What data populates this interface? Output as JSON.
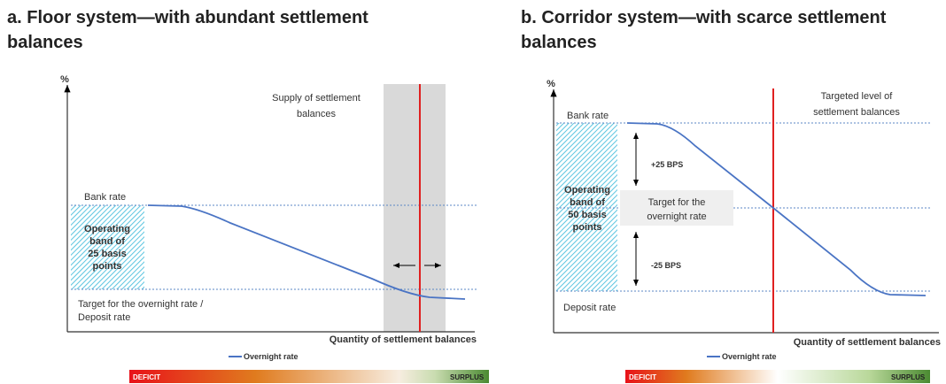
{
  "panels": [
    {
      "title": "a. Floor system—with abundant settlement balances",
      "y_axis_label": "%",
      "supply_label": [
        "Supply of settlement",
        "balances"
      ],
      "bank_rate_label": "Bank rate",
      "band_label": [
        "Operating",
        "band of",
        "25 basis",
        "points"
      ],
      "target_label": [
        "Target for the overnight rate /",
        "Deposit rate"
      ],
      "x_axis_label": "Quantity of settlement balances",
      "legend": "Overnight rate",
      "bar_left": "DEFICIT",
      "bar_right": "SURPLUS"
    },
    {
      "title": "b. Corridor system—with scarce settlement balances",
      "y_axis_label": "%",
      "supply_label": [
        "Targeted level of",
        "settlement balances"
      ],
      "bank_rate_label": "Bank rate",
      "band_label": [
        "Operating",
        "band of",
        "50 basis",
        "points"
      ],
      "up_label": "+25 BPS",
      "down_label": "-25 BPS",
      "target_label": [
        "Target for the",
        "overnight rate"
      ],
      "deposit_label": "Deposit rate",
      "x_axis_label": "Quantity of settlement balances",
      "legend": "Overnight rate",
      "bar_left": "DEFICIT",
      "bar_right": "SURPLUS"
    }
  ]
}
